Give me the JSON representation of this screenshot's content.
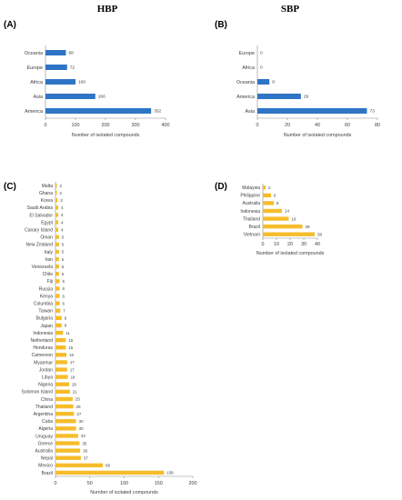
{
  "headers": {
    "left": "HBP",
    "right": "SBP"
  },
  "colors": {
    "A": "#2e75c6",
    "B": "#2e75c6",
    "C": "#f5bd2a",
    "D": "#f5bd2a",
    "axis": "#8a8a8a"
  },
  "chart_data": [
    {
      "id": "A",
      "panel_label": "(A)",
      "type": "bar",
      "orientation": "horizontal",
      "categories": [
        "Oceania",
        "Europe",
        "Africa",
        "Asia",
        "America"
      ],
      "values": [
        68,
        72,
        100,
        166,
        352
      ],
      "xlim": [
        0,
        400
      ],
      "xticks": [
        0,
        100,
        200,
        300,
        400
      ],
      "xlabel": "Number of isolated compounds"
    },
    {
      "id": "B",
      "panel_label": "(B)",
      "type": "bar",
      "orientation": "horizontal",
      "categories": [
        "Europe",
        "Africa",
        "Oceania",
        "America",
        "Asia"
      ],
      "values": [
        0,
        0,
        8,
        29,
        73
      ],
      "xlim": [
        0,
        80
      ],
      "xticks": [
        0,
        20,
        40,
        60,
        80
      ],
      "xlabel": "Number of isolated compounds"
    },
    {
      "id": "C",
      "panel_label": "(C)",
      "type": "bar",
      "orientation": "horizontal",
      "categories": [
        "Malta",
        "Ghana",
        "Korea",
        "Saudi Arabia",
        "El Salvador",
        "Egypt",
        "Canary Island",
        "Oman",
        "New Zealand",
        "Italy",
        "Iran",
        "Venezuela",
        "Chile",
        "Fiji",
        "Russia",
        "Kenya",
        "Columbia",
        "Taiwan",
        "Bulgaria",
        "Japan",
        "Indonesia",
        "Netherland",
        "Honduras",
        "Cameroon",
        "Myanmar",
        "Jordan",
        "Libya",
        "Nigeria",
        "Solomon Island",
        "China",
        "Thailand",
        "Argentina",
        "Cuba",
        "Algeria",
        "Uruguay",
        "Greece",
        "Australia",
        "Nepal",
        "Mexico",
        "Brazil"
      ],
      "values": [
        2,
        2,
        3,
        4,
        4,
        4,
        4,
        5,
        5,
        5,
        5,
        5,
        5,
        6,
        6,
        6,
        6,
        7,
        9,
        9,
        11,
        15,
        15,
        16,
        17,
        17,
        18,
        20,
        21,
        25,
        26,
        27,
        30,
        30,
        33,
        35,
        36,
        37,
        69,
        158
      ],
      "xlim": [
        0,
        200
      ],
      "xticks": [
        0,
        50,
        100,
        150,
        200
      ],
      "xlabel": "Number of isolated compounds"
    },
    {
      "id": "D",
      "panel_label": "(D)",
      "type": "bar",
      "orientation": "horizontal",
      "categories": [
        "Malaysia",
        "Philippine",
        "Australia",
        "Indonesia",
        "Thailand",
        "Brazil",
        "Vietnam"
      ],
      "values": [
        2,
        6,
        8,
        14,
        19,
        29,
        38
      ],
      "xlim": [
        0,
        40
      ],
      "xticks": [
        0,
        10,
        20,
        30,
        40
      ],
      "xlabel": "Number of isolated compounds"
    }
  ]
}
